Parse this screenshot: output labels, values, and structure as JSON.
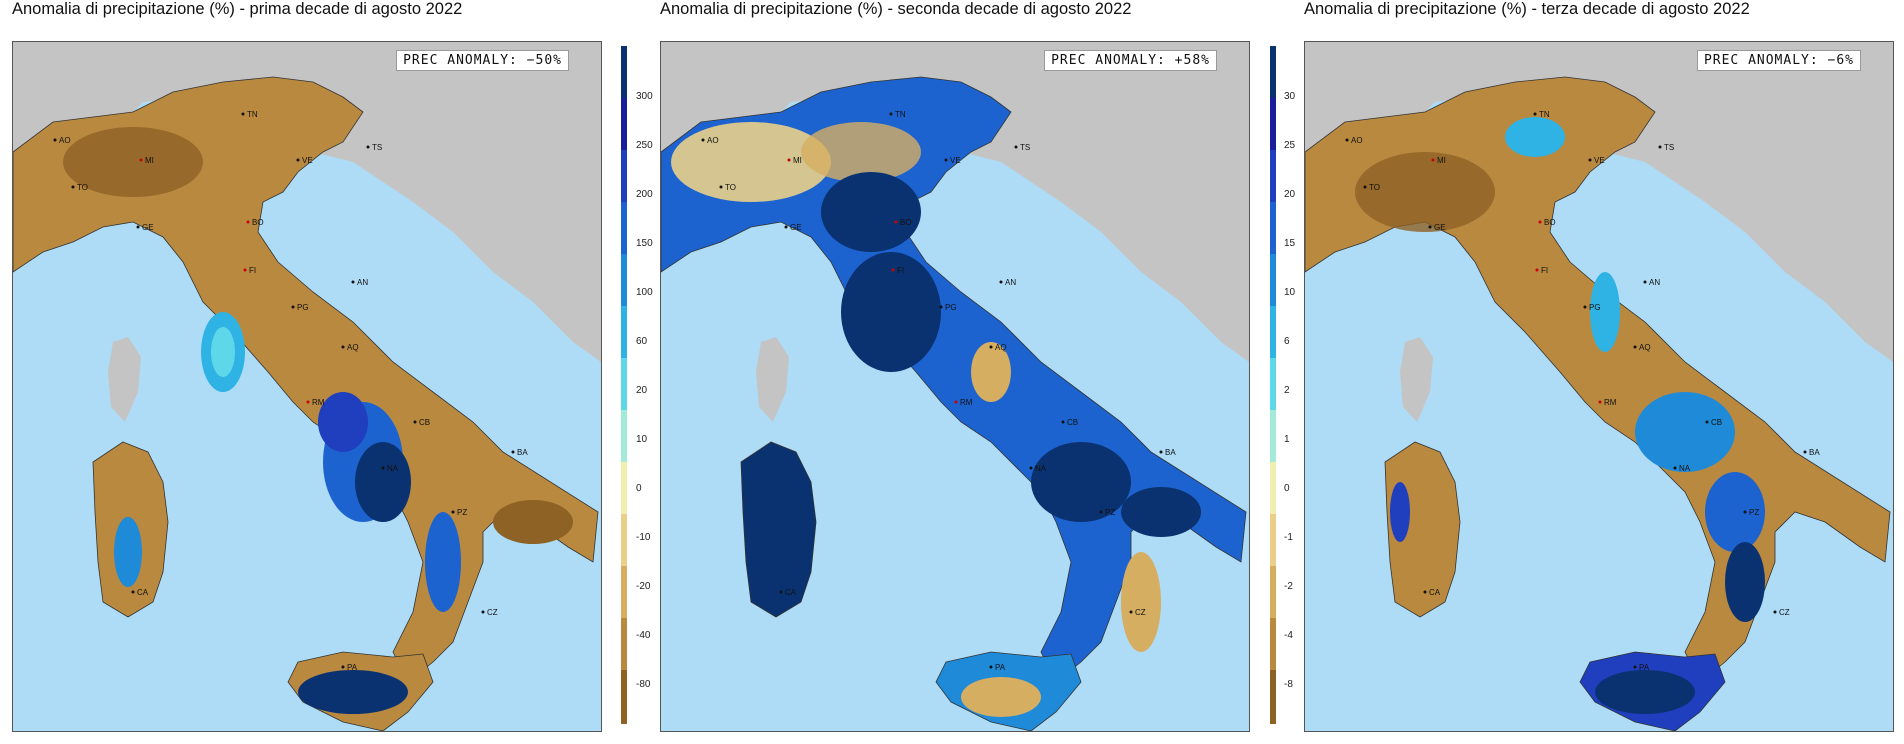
{
  "panels": [
    {
      "title": "Anomalia di precipitazione (%) - prima decade di agosto 2022",
      "anomaly": "PREC ANOMALY: −50%"
    },
    {
      "title": "Anomalia di precipitazione (%) - seconda decade di agosto 2022",
      "anomaly": "PREC ANOMALY: +58%"
    },
    {
      "title": "Anomalia di precipitazione (%) - terza decade di agosto 2022",
      "anomaly": "PREC ANOMALY: −6%"
    }
  ],
  "colorbar_1": [
    "300",
    "250",
    "200",
    "150",
    "100",
    "60",
    "20",
    "10",
    "0",
    "-10",
    "-20",
    "-40",
    "-80"
  ],
  "colorbar_2": [
    "30",
    "25",
    "20",
    "15",
    "10",
    "6",
    "2",
    "1",
    "0",
    "-1",
    "-2",
    "-4",
    "-8"
  ],
  "colors": {
    "sea": "#aedcf6",
    "land_foreign": "#c4c4c4",
    "scale": [
      "#0b3270",
      "#1a1e9a",
      "#1f3fbf",
      "#1c63cf",
      "#1f8ad8",
      "#2eb3e4",
      "#5ed7e8",
      "#a3ead8",
      "#f1efb0",
      "#e9cf89",
      "#d6ae62",
      "#b8893f",
      "#8e6225"
    ]
  },
  "cities": [
    "AO",
    "MI",
    "TN",
    "TS",
    "VE",
    "TO",
    "GE",
    "BO",
    "FI",
    "AN",
    "PG",
    "AQ",
    "RM",
    "CB",
    "NA",
    "BA",
    "PZ",
    "CA",
    "PA",
    "CZ"
  ]
}
